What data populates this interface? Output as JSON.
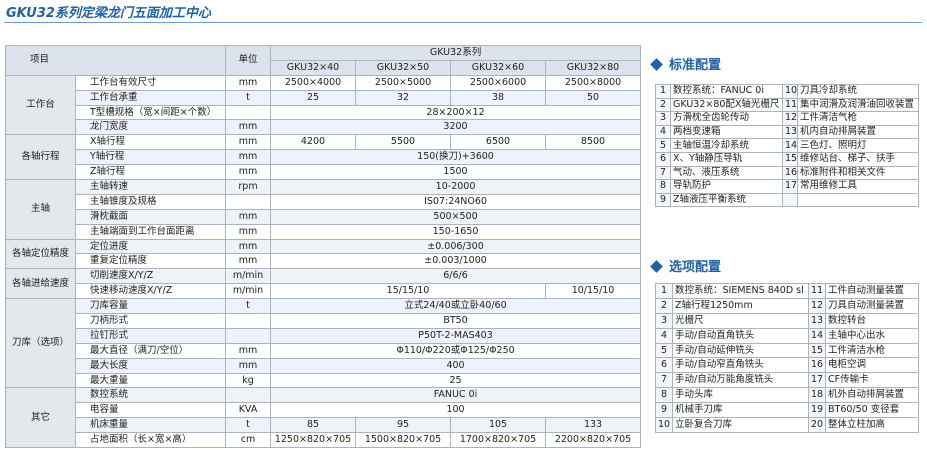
{
  "header": {
    "title": "GKU32系列定梁龙门五面加工中心"
  },
  "spec_table": {
    "col_item": "项目",
    "col_unit": "单位",
    "series": "GKU32系列",
    "models": [
      "GKU32×40",
      "GKU32×50",
      "GKU32×60",
      "GKU32×80"
    ],
    "groups": [
      {
        "name": "工作台",
        "rows": [
          {
            "label": "工作台有效尺寸",
            "unit": "mm",
            "values": [
              "2500×4000",
              "2500×5000",
              "2500×6000",
              "2500×8000"
            ]
          },
          {
            "label": "工作台承重",
            "unit": "t",
            "values": [
              25,
              32,
              38,
              50
            ]
          },
          {
            "label": "T型槽规格（宽×间距×个数）",
            "values": [
              "28×200×12"
            ]
          },
          {
            "label": "龙门宽度",
            "unit": "mm",
            "values": [
              3200
            ]
          }
        ]
      },
      {
        "name": "各轴行程",
        "rows": [
          {
            "label": "X轴行程",
            "unit": "mm",
            "values": [
              4200,
              5500,
              6500,
              8500
            ]
          },
          {
            "label": "Y轴行程",
            "unit": "mm",
            "values": [
              "150(换刀)+3600"
            ]
          },
          {
            "label": "Z轴行程",
            "unit": "mm",
            "values": [
              1500
            ]
          }
        ]
      },
      {
        "name": "主轴",
        "rows": [
          {
            "label": "主轴转速",
            "unit": "rpm",
            "values": [
              "10-2000"
            ]
          },
          {
            "label": "主轴锥度及规格",
            "values": [
              "IS07:24NO60"
            ]
          },
          {
            "label": "滑枕截面",
            "unit": "mm",
            "values": [
              "500×500"
            ]
          },
          {
            "label": "主轴端面到工作台面距离",
            "unit": "mm",
            "values": [
              "150-1650"
            ]
          }
        ]
      },
      {
        "name": "各轴定位精度",
        "rows": [
          {
            "label": "定位进度",
            "unit": "mm",
            "values": [
              "±0.006/300"
            ]
          },
          {
            "label": "重复定位精度",
            "unit": "mm",
            "values": [
              "±0.003/1000"
            ]
          }
        ]
      },
      {
        "name": "各轴进给速度",
        "rows": [
          {
            "label": "切削速度X/Y/Z",
            "unit": "m/min",
            "values": [
              "6/6/6"
            ]
          },
          {
            "label": "快速移动速度X/Y/Z",
            "unit": "m/min",
            "values": [
              "15/15/10",
              "10/15/10"
            ]
          }
        ]
      },
      {
        "name": "刀库（选项）",
        "rows": [
          {
            "label": "刀库容量",
            "unit": "t",
            "values": [
              "立式24/40或立卧40/60"
            ]
          },
          {
            "label": "刀柄形式",
            "values": [
              "BT50"
            ]
          },
          {
            "label": "拉钉形式",
            "values": [
              "P50T-2-MAS403"
            ]
          },
          {
            "label": "最大直径（满刀/空位）",
            "unit": "mm",
            "values": [
              "Φ110/Φ220或Φ125/Φ250"
            ]
          },
          {
            "label": "最大长度",
            "unit": "mm",
            "values": [
              400
            ]
          },
          {
            "label": "最大重量",
            "unit": "kg",
            "values": [
              25
            ]
          }
        ]
      },
      {
        "name": "其它",
        "rows": [
          {
            "label": "数控系统",
            "values": [
              "FANUC 0i"
            ]
          },
          {
            "label": "电容量",
            "unit": "KVA",
            "values": [
              100
            ]
          },
          {
            "label": "机床重量",
            "unit": "t",
            "values": [
              85,
              95,
              105,
              133
            ]
          },
          {
            "label": "占地面积（长×宽×高）",
            "unit": "cm",
            "values": [
              "1250×820×705",
              "1500×820×705",
              "1700×820×705",
              "2200×820×705"
            ]
          }
        ]
      }
    ]
  },
  "standard": {
    "title": "标准配置",
    "left": [
      {
        "no": 1,
        "text": "数控系统：FANUC 0i"
      },
      {
        "no": 2,
        "text": "GKU32×80配X轴光栅尺"
      },
      {
        "no": 3,
        "text": "方滑枕全齿轮传动"
      },
      {
        "no": 4,
        "text": "两档变速箱"
      },
      {
        "no": 5,
        "text": "主轴恒温冷却系统"
      },
      {
        "no": 6,
        "text": "X、Y轴静压导轨"
      },
      {
        "no": 7,
        "text": "气动、液压系统"
      },
      {
        "no": 8,
        "text": "导轨防护"
      },
      {
        "no": 9,
        "text": "Z轴液压平衡系统"
      }
    ],
    "right": [
      {
        "no": 10,
        "text": "刀具冷却系统"
      },
      {
        "no": 11,
        "text": "集中润滑及润滑油回收装置"
      },
      {
        "no": 12,
        "text": "工件清洁气枪"
      },
      {
        "no": 13,
        "text": "机内自动排屑装置"
      },
      {
        "no": 14,
        "text": "三色灯、照明灯"
      },
      {
        "no": 15,
        "text": "维修站台、梯子、扶手"
      },
      {
        "no": 16,
        "text": "标准附件和相关文件"
      },
      {
        "no": 17,
        "text": "常用维修工具"
      }
    ]
  },
  "options": {
    "title": "选项配置",
    "left": [
      {
        "no": 1,
        "text": "数控系统：SIEMENS 840D sl"
      },
      {
        "no": 2,
        "text": "Z轴行程1250mm"
      },
      {
        "no": 3,
        "text": "光栅尺"
      },
      {
        "no": 4,
        "text": "手动/自动直角铣头"
      },
      {
        "no": 5,
        "text": "手动/自动延伸铣头"
      },
      {
        "no": 6,
        "text": "手动/自动窄直角铣头"
      },
      {
        "no": 7,
        "text": "手动/自动万能角度铣头"
      },
      {
        "no": 8,
        "text": "手动头库"
      },
      {
        "no": 9,
        "text": "机械手刀库"
      },
      {
        "no": 10,
        "text": "立卧复合刀库"
      }
    ],
    "right": [
      {
        "no": 11,
        "text": "工件自动测量装置"
      },
      {
        "no": 12,
        "text": "刀具自动测量装置"
      },
      {
        "no": 13,
        "text": "数控转台"
      },
      {
        "no": 14,
        "text": "主轴中心出水"
      },
      {
        "no": 15,
        "text": "工件清洁水枪"
      },
      {
        "no": 16,
        "text": "电柜空调"
      },
      {
        "no": 17,
        "text": "CF传输卡"
      },
      {
        "no": 18,
        "text": "机外自动排屑装置"
      },
      {
        "no": 19,
        "text": "BT60/50 变径套"
      },
      {
        "no": 20,
        "text": "整体立柱加高"
      }
    ]
  }
}
